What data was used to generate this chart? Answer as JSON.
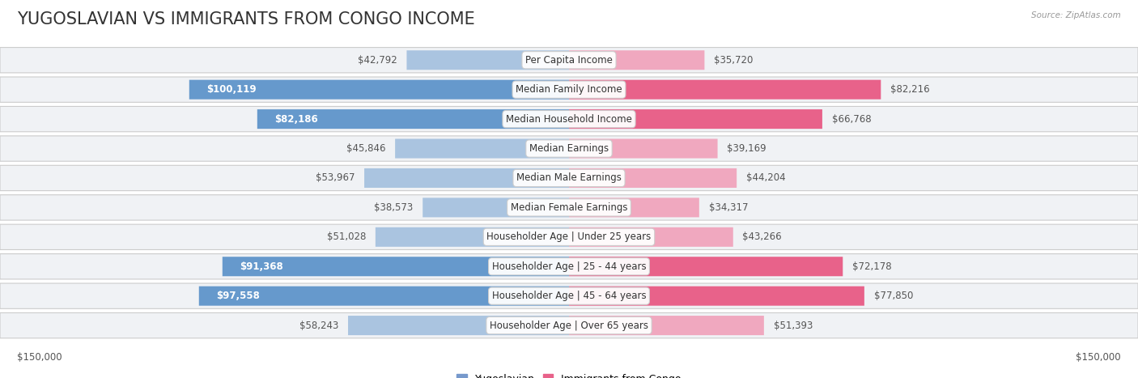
{
  "title": "YUGOSLAVIAN VS IMMIGRANTS FROM CONGO INCOME",
  "source": "Source: ZipAtlas.com",
  "categories": [
    "Per Capita Income",
    "Median Family Income",
    "Median Household Income",
    "Median Earnings",
    "Median Male Earnings",
    "Median Female Earnings",
    "Householder Age | Under 25 years",
    "Householder Age | 25 - 44 years",
    "Householder Age | 45 - 64 years",
    "Householder Age | Over 65 years"
  ],
  "yugoslav_values": [
    42792,
    100119,
    82186,
    45846,
    53967,
    38573,
    51028,
    91368,
    97558,
    58243
  ],
  "congo_values": [
    35720,
    82216,
    66768,
    39169,
    44204,
    34317,
    43266,
    72178,
    77850,
    51393
  ],
  "yugoslav_labels": [
    "$42,792",
    "$100,119",
    "$82,186",
    "$45,846",
    "$53,967",
    "$38,573",
    "$51,028",
    "$91,368",
    "$97,558",
    "$58,243"
  ],
  "congo_labels": [
    "$35,720",
    "$82,216",
    "$66,768",
    "$39,169",
    "$44,204",
    "$34,317",
    "$43,266",
    "$72,178",
    "$77,850",
    "$51,393"
  ],
  "yugoslav_white_label": [
    false,
    true,
    true,
    false,
    false,
    false,
    false,
    true,
    true,
    false
  ],
  "congo_white_label": [
    false,
    false,
    false,
    false,
    false,
    false,
    false,
    false,
    false,
    false
  ],
  "max_value": 150000,
  "yugoslav_color_strong": "#6699cc",
  "yugoslav_color_light": "#aac4e0",
  "congo_color_strong": "#e8628a",
  "congo_color_light": "#f0a8bf",
  "row_bg_even": "#f0f0f2",
  "row_bg_odd": "#e8e8ec",
  "legend_yugoslav_color": "#7799cc",
  "legend_congo_color": "#e8628a",
  "axis_label_left": "$150,000",
  "axis_label_right": "$150,000",
  "title_fontsize": 15,
  "cat_fontsize": 8.5,
  "value_fontsize": 8.5,
  "yug_thresh": 65000,
  "con_thresh": 60000
}
